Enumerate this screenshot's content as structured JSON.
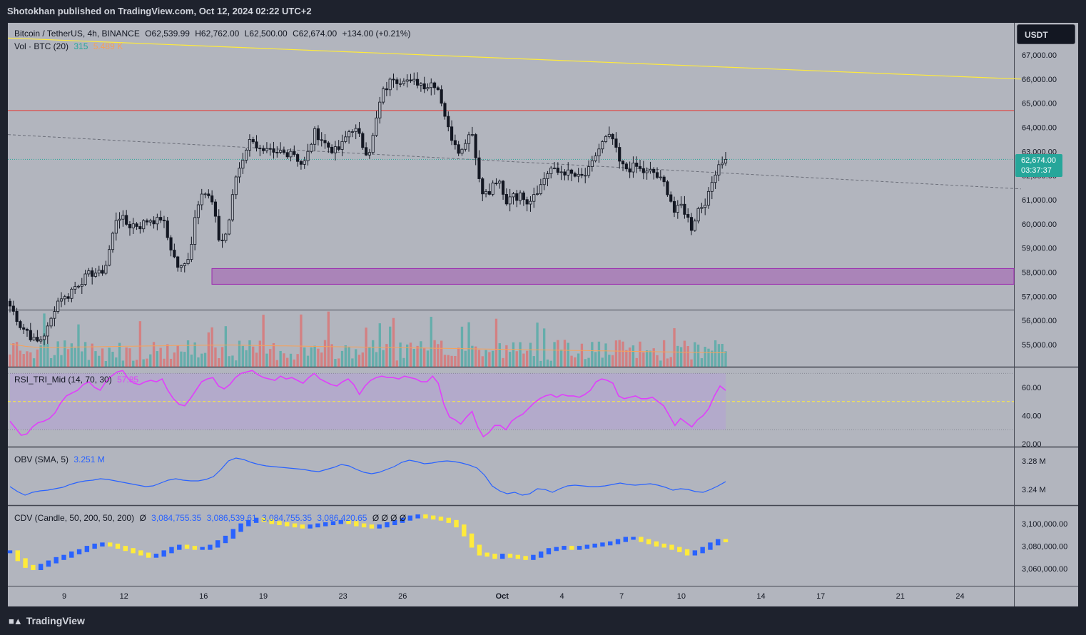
{
  "header": {
    "published": "Shotokhan published on TradingView.com, Oct 12, 2024 02:22 UTC+2"
  },
  "footer": {
    "brand": "TradingView"
  },
  "currency_button": "USDT",
  "price_tag": {
    "price": "62,674.00",
    "countdown": "03:37:37"
  },
  "legend_main": {
    "symbol": "Bitcoin / TetherUS, 4h, BINANCE",
    "open": "O62,539.99",
    "high": "H62,762.00",
    "low": "L62,500.00",
    "close": "C62,674.00",
    "change": "+134.00 (+0.21%)"
  },
  "legend_vol": {
    "label": "Vol · BTC (20)",
    "value1": "315",
    "value2": "5.489 K"
  },
  "legend_rsi": {
    "label": "RSI_TRI_Mid (14, 70, 30)",
    "value": "57.85"
  },
  "legend_obv": {
    "label": "OBV (SMA, 5)",
    "value": "3.251 M"
  },
  "legend_cdv": {
    "label": "CDV (Candle, 50, 200, 50, 200)",
    "symbol": "Ø",
    "v1": "3,084,755.35",
    "v2": "3,086,539.61",
    "v3": "3,084,755.35",
    "v4": "3,086,420.65",
    "tail": "Ø Ø Ø Ø"
  },
  "colors": {
    "up": "#26a69a",
    "down": "#ef5350",
    "pane_bg": "#b2b5be",
    "resistance": "#e53935",
    "trend": "#ffeb3b",
    "zone": "#9c27b0",
    "rsi": "#e040fb",
    "obv": "#2962ff",
    "cdv_up": "#2962ff",
    "cdv_down": "#ffeb3b"
  },
  "chart_data": [
    {
      "type": "candlestick",
      "title": "Bitcoin / TetherUS, 4h, BINANCE",
      "ylim": [
        54400,
        68000
      ],
      "price_ticks": [
        "67,000.00",
        "66,000.00",
        "65,000.00",
        "64,000.00",
        "63,000.00",
        "62,000.00",
        "61,000.00",
        "60,000.00",
        "59,000.00",
        "58,000.00",
        "57,000.00",
        "56,000.00",
        "55,000.00"
      ],
      "time_ticks": [
        "9",
        "12",
        "16",
        "19",
        "23",
        "26",
        "Oct",
        "4",
        "7",
        "10",
        "14",
        "17",
        "21",
        "24"
      ],
      "close_path": [
        56600,
        56200,
        55700,
        55600,
        55200,
        55100,
        55400,
        55800,
        56600,
        57000,
        56900,
        57300,
        57500,
        57700,
        57900,
        58000,
        57900,
        58300,
        59300,
        60400,
        60200,
        59900,
        60000,
        59900,
        60100,
        60200,
        60100,
        60300,
        59400,
        58700,
        58100,
        58300,
        58900,
        60600,
        61400,
        61200,
        60800,
        59400,
        59300,
        60300,
        61900,
        62500,
        63200,
        63600,
        63100,
        62900,
        63000,
        62800,
        63000,
        62900,
        63100,
        62700,
        62400,
        63000,
        63800,
        63600,
        63300,
        63100,
        63000,
        63300,
        63800,
        64000,
        63600,
        63000,
        63100,
        64300,
        65400,
        65700,
        66100,
        65900,
        66100,
        65800,
        65900,
        65800,
        65700,
        65900,
        65600,
        64700,
        63700,
        63400,
        62900,
        63600,
        63900,
        62100,
        61300,
        61200,
        61800,
        61600,
        60700,
        61400,
        61100,
        61200,
        60900,
        61300,
        61500,
        62000,
        62300,
        62100,
        62200,
        62100,
        62000,
        61900,
        62000,
        62300,
        62900,
        63300,
        63600,
        63500,
        62600,
        62300,
        62300,
        62400,
        62200,
        62100,
        62200,
        61900,
        61700,
        61200,
        60400,
        60800,
        60400,
        59800,
        60600,
        60800,
        61200,
        62100,
        62600,
        62674
      ],
      "volume_ma": [
        1200,
        1100,
        1000,
        900,
        850,
        800,
        780,
        760,
        750,
        760,
        780,
        800,
        820,
        830,
        840,
        850,
        860,
        870,
        880,
        890,
        900,
        910,
        915,
        920,
        930,
        940,
        950,
        960,
        970,
        980,
        990,
        1000,
        1010,
        1020,
        1025,
        1030,
        1035,
        1040,
        1045,
        1050,
        1055,
        1060,
        1060,
        1050,
        1040,
        1030,
        1020,
        1010,
        1000,
        990,
        980,
        970,
        960,
        950,
        940,
        930,
        920,
        910,
        900,
        890,
        880,
        870,
        860,
        850,
        840,
        830,
        820,
        810,
        800,
        790,
        780,
        770,
        760,
        750,
        740,
        730,
        720,
        710,
        700,
        690,
        680,
        670,
        660,
        650,
        640,
        630,
        620,
        610,
        600,
        590,
        580,
        570,
        560,
        550,
        540,
        530,
        520,
        510,
        500,
        490,
        480,
        470,
        460,
        450,
        440,
        430,
        420,
        410,
        400,
        390,
        380,
        370,
        360,
        350,
        340,
        330,
        320,
        310,
        300,
        290,
        280,
        270,
        260,
        250,
        240,
        230,
        220,
        210,
        200,
        190,
        180,
        170,
        160,
        150,
        140,
        130
      ],
      "resistance_level": 64700,
      "zone": [
        57500,
        58150
      ],
      "trendline_yellow": [
        [
          0,
          67700
        ],
        [
          1420,
          66000
        ]
      ],
      "trendline_dashed": [
        [
          0,
          63700
        ],
        [
          1420,
          61450
        ]
      ]
    },
    {
      "type": "line",
      "title": "RSI_TRI_Mid (14, 70, 30)",
      "ylim": [
        20,
        70
      ],
      "y_ticks": [
        "60.00",
        "40.00",
        "20.00"
      ],
      "bands": [
        30,
        50,
        70
      ],
      "values": [
        36,
        31,
        26,
        27,
        32,
        35,
        36,
        38,
        42,
        49,
        54,
        56,
        58,
        62,
        64,
        60,
        58,
        64,
        68,
        71,
        72,
        66,
        63,
        62,
        64,
        65,
        64,
        66,
        58,
        52,
        48,
        47,
        52,
        58,
        64,
        66,
        67,
        61,
        59,
        62,
        67,
        70,
        71,
        72,
        69,
        67,
        66,
        65,
        68,
        66,
        67,
        65,
        63,
        67,
        70,
        66,
        64,
        62,
        61,
        64,
        66,
        62,
        55,
        61,
        65,
        67,
        68,
        67,
        67,
        66,
        68,
        67,
        66,
        64,
        64,
        68,
        63,
        48,
        39,
        37,
        34,
        39,
        43,
        32,
        25,
        28,
        33,
        33,
        30,
        36,
        39,
        41,
        45,
        49,
        52,
        54,
        55,
        53,
        55,
        54,
        54,
        53,
        55,
        58,
        64,
        66,
        65,
        63,
        54,
        52,
        53,
        54,
        52,
        52,
        53,
        50,
        47,
        40,
        33,
        38,
        35,
        32,
        37,
        40,
        45,
        54,
        61,
        57.85
      ]
    },
    {
      "type": "line",
      "title": "OBV (SMA, 5)",
      "y_ticks": [
        "3.28 M",
        "3.24 M"
      ],
      "values": [
        3.244,
        3.237,
        3.232,
        3.236,
        3.238,
        3.239,
        3.241,
        3.243,
        3.247,
        3.25,
        3.252,
        3.253,
        3.255,
        3.254,
        3.252,
        3.25,
        3.248,
        3.246,
        3.244,
        3.245,
        3.249,
        3.253,
        3.255,
        3.253,
        3.252,
        3.252,
        3.254,
        3.258,
        3.268,
        3.28,
        3.284,
        3.282,
        3.278,
        3.275,
        3.273,
        3.272,
        3.271,
        3.27,
        3.269,
        3.268,
        3.266,
        3.265,
        3.268,
        3.271,
        3.275,
        3.273,
        3.268,
        3.264,
        3.262,
        3.264,
        3.268,
        3.272,
        3.278,
        3.281,
        3.279,
        3.276,
        3.277,
        3.279,
        3.28,
        3.279,
        3.277,
        3.274,
        3.27,
        3.26,
        3.245,
        3.238,
        3.234,
        3.236,
        3.232,
        3.234,
        3.241,
        3.24,
        3.236,
        3.241,
        3.245,
        3.246,
        3.245,
        3.244,
        3.244,
        3.245,
        3.247,
        3.249,
        3.247,
        3.246,
        3.247,
        3.248,
        3.246,
        3.243,
        3.239,
        3.241,
        3.24,
        3.237,
        3.236,
        3.24,
        3.245,
        3.251
      ]
    },
    {
      "type": "bar",
      "title": "CDV (Candle, 50, 200, 50, 200)",
      "y_ticks": [
        "3,100,000.00",
        "3,080,000.00",
        "3,060,000.00"
      ],
      "values": [
        3075000,
        3068000,
        3062000,
        3060000,
        3063000,
        3066000,
        3069000,
        3071000,
        3074000,
        3076000,
        3079000,
        3081000,
        3082000,
        3081000,
        3079000,
        3077000,
        3075000,
        3073000,
        3071000,
        3072000,
        3075000,
        3078000,
        3080000,
        3079000,
        3078000,
        3078000,
        3080000,
        3084000,
        3088000,
        3094000,
        3099000,
        3102000,
        3104000,
        3103000,
        3101000,
        3100000,
        3099000,
        3098000,
        3097000,
        3098000,
        3099000,
        3100000,
        3101000,
        3102000,
        3101000,
        3099000,
        3098000,
        3097000,
        3098000,
        3100000,
        3102000,
        3104000,
        3106000,
        3107000,
        3106000,
        3105000,
        3104000,
        3102000,
        3098000,
        3090000,
        3080000,
        3073000,
        3072000,
        3070000,
        3072000,
        3071000,
        3070000,
        3069000,
        3071000,
        3074000,
        3077000,
        3078000,
        3079000,
        3078000,
        3079000,
        3080000,
        3081000,
        3082000,
        3083000,
        3085000,
        3087000,
        3087000,
        3085000,
        3083000,
        3081000,
        3080000,
        3078000,
        3076000,
        3073000,
        3075000,
        3078000,
        3082000,
        3085000,
        3084755
      ]
    }
  ]
}
